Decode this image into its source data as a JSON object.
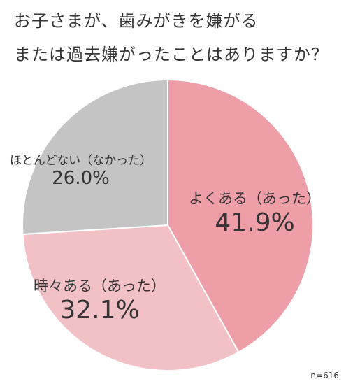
{
  "title": {
    "line1": "お子さまが、歯みがきを嫌がる",
    "line2": "または過去嫌がったことはありますか？"
  },
  "sample_size": "n=616",
  "chart_data": {
    "type": "pie",
    "title": "お子さまが、歯みがきを嫌がる または過去嫌がったことはありますか？",
    "start": "12 o'clock, clockwise",
    "slices": [
      {
        "label": "よくある（あった）",
        "value": 41.9,
        "display": "41.9%",
        "color": "#ee9ea7"
      },
      {
        "label": "時々ある（あった）",
        "value": 32.1,
        "display": "32.1%",
        "color": "#f2c1c6"
      },
      {
        "label": "ほとんどない（なかった）",
        "value": 26.0,
        "display": "26.0%",
        "color": "#c4c4c4"
      }
    ],
    "note": "n=616"
  }
}
